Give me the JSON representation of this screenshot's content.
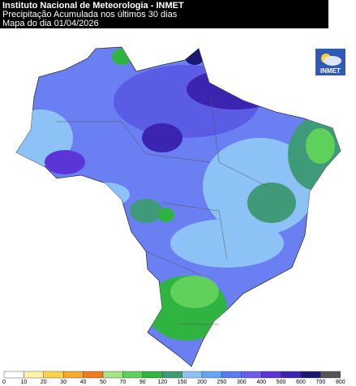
{
  "header": {
    "lines": [
      "Instituto Nacional de Meteorologia - INMET",
      "Precipitação Acumulada nos últimos 30 dias",
      "Mapa do dia 01/04/2026"
    ]
  },
  "logo": {
    "label": "INMET"
  },
  "legend": {
    "labels": [
      "0",
      "10",
      "20",
      "30",
      "40",
      "50",
      "70",
      "90",
      "120",
      "150",
      "200",
      "250",
      "300",
      "400",
      "500",
      "600",
      "700",
      "800"
    ],
    "colors": [
      "#ffffff",
      "#fff3a8",
      "#fcd24a",
      "#f9a82a",
      "#f07a1e",
      "#a6e38a",
      "#5fd05a",
      "#2fb341",
      "#3f9a7a",
      "#8cc2f5",
      "#64a5f2",
      "#5b7cf0",
      "#6a5ce8",
      "#5b35d8",
      "#3b25b0",
      "#1a1870",
      "#555555"
    ]
  }
}
